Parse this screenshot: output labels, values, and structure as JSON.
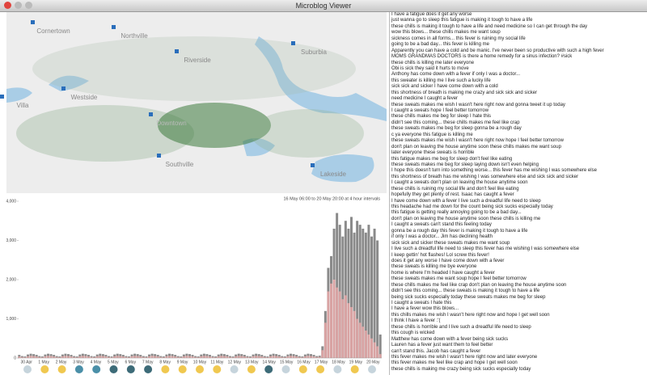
{
  "window": {
    "title": "Microblog Viewer"
  },
  "map": {
    "places": [
      "Cornertown",
      "Northville",
      "Suburbia",
      "Riverside",
      "Villa",
      "Westside",
      "Downtown",
      "Southville",
      "Lakeside"
    ]
  },
  "chart_data": {
    "type": "bar",
    "subtitle": "16 May 06:00 to 20 May 20:00 at 4 hour intervals",
    "categories": [
      "30 Apr",
      null,
      null,
      null,
      null,
      null,
      "1 May",
      null,
      null,
      null,
      null,
      null,
      "2 May",
      null,
      null,
      null,
      null,
      null,
      "3 May",
      null,
      null,
      null,
      null,
      null,
      "4 May",
      null,
      null,
      null,
      null,
      null,
      "5 May",
      null,
      null,
      null,
      null,
      null,
      "6 May",
      null,
      null,
      null,
      null,
      null,
      "7 May",
      null,
      null,
      null,
      null,
      null,
      "8 May",
      null,
      null,
      null,
      null,
      null,
      "9 May",
      null,
      null,
      null,
      null,
      null,
      "10 May",
      null,
      null,
      null,
      null,
      null,
      "11 May",
      null,
      null,
      null,
      null,
      null,
      "12 May",
      null,
      null,
      null,
      null,
      null,
      "13 May",
      null,
      null,
      null,
      null,
      null,
      "14 May",
      null,
      null,
      null,
      null,
      null,
      "15 May",
      null,
      null,
      null,
      null,
      null,
      "16 May",
      null,
      null,
      null,
      null,
      null,
      "17 May",
      null,
      null,
      null,
      null,
      null,
      "18 May",
      null,
      null,
      null,
      null,
      null,
      "19 May",
      null,
      null,
      null,
      null,
      null,
      "20 May",
      null,
      null,
      null,
      null,
      null
    ],
    "series": [
      {
        "color": "#8a8a8a",
        "values": [
          80,
          50,
          40,
          90,
          110,
          100,
          80,
          50,
          40,
          90,
          110,
          100,
          80,
          50,
          40,
          90,
          110,
          100,
          80,
          50,
          40,
          90,
          110,
          100,
          80,
          50,
          40,
          90,
          110,
          100,
          80,
          50,
          40,
          90,
          110,
          100,
          80,
          50,
          40,
          90,
          110,
          100,
          80,
          50,
          40,
          90,
          110,
          100,
          80,
          50,
          40,
          90,
          110,
          100,
          80,
          50,
          40,
          90,
          110,
          100,
          80,
          50,
          40,
          90,
          110,
          100,
          80,
          50,
          40,
          90,
          110,
          100,
          80,
          50,
          40,
          90,
          110,
          100,
          80,
          50,
          40,
          90,
          110,
          100,
          80,
          50,
          40,
          90,
          110,
          100,
          80,
          50,
          40,
          90,
          110,
          100,
          80,
          50,
          40,
          90,
          110,
          100,
          80,
          50,
          60,
          300,
          1200,
          2300,
          2600,
          3300,
          3700,
          3400,
          3100,
          3500,
          3300,
          3600,
          3200,
          3500,
          3400,
          3300,
          3200,
          3400,
          3100,
          3300,
          3000,
          600
        ]
      },
      {
        "color": "#d9a3a3",
        "values": [
          40,
          25,
          20,
          45,
          55,
          50,
          40,
          25,
          20,
          45,
          55,
          50,
          40,
          25,
          20,
          45,
          55,
          50,
          40,
          25,
          20,
          45,
          55,
          50,
          40,
          25,
          20,
          45,
          55,
          50,
          40,
          25,
          20,
          45,
          55,
          50,
          40,
          25,
          20,
          45,
          55,
          50,
          40,
          25,
          20,
          45,
          55,
          50,
          40,
          25,
          20,
          45,
          55,
          50,
          40,
          25,
          20,
          45,
          55,
          50,
          40,
          25,
          20,
          45,
          55,
          50,
          40,
          25,
          20,
          45,
          55,
          50,
          40,
          25,
          20,
          45,
          55,
          50,
          40,
          25,
          20,
          45,
          55,
          50,
          40,
          25,
          20,
          45,
          55,
          50,
          40,
          25,
          20,
          45,
          55,
          50,
          40,
          25,
          20,
          45,
          55,
          50,
          40,
          25,
          30,
          200,
          900,
          1700,
          1900,
          2000,
          1800,
          1700,
          1500,
          1600,
          1400,
          1300,
          1200,
          1000,
          900,
          800,
          700,
          600,
          500,
          400,
          300,
          100
        ]
      }
    ],
    "ylim": [
      0,
      4000
    ],
    "yticks": [
      0,
      {
        "value": 1000,
        "label": "1,000"
      },
      {
        "value": 2000,
        "label": "2,000"
      },
      {
        "value": 3000,
        "label": "3,000"
      },
      {
        "value": 4000,
        "label": "4,000"
      }
    ]
  },
  "messages": [
    "I have a fatigue does it get any worse",
    "just wanna go to sleep this fatigue is making it tough to have a life",
    "these chills is making it tough to have a life and need medicine so I can get through the day",
    "wow this blows... these chills makes me want soup",
    "sickness comes in all forms... this fever is ruining my social life",
    "going to be a bad day... this fever is killing me",
    "Apparently you can have a cold and be manic. I've never been so productive with such a high fever",
    "MOMS GRANDMAS DOCTORS is there a home remedy for a sinus infection? #sick",
    "these chills is killing me later everyone",
    "Obi is sick they said it hurts to move",
    "Anthony has come down with a fever if only I was a doctor...",
    "this sweater is killing me I live such a lucky life",
    "sick sick and sicker I have come down with a cold",
    "this shortness of breath is making me crazy and sick sick and sicker",
    "need medicine I caught a fever",
    "these sweats makes me wish I wasn't here right now and gonna tweet it up today",
    "I caught a sweats hope I feel better tomorrow",
    "these chills makes me beg for sleep I hate this",
    "didn't see this coming... these chills makes me feel like crap",
    "these sweats makes me beg for sleep gonna be a rough day",
    "c ya everyone this fatigue is killing me",
    "these sweats makes me wish I wasn't here right now hope I feel better tomorrow",
    "don't plan on leaving the house anytime soon these chills makes me want soup",
    "later everyone these sweats is horrible",
    "this fatigue makes me beg for sleep don't feel like eating",
    "these sweats makes me beg for sleep laying down isn't even helping",
    "I hope this doesn't turn into something worse... this fever has me wishing I was somewhere else",
    "this shortness of breath has me wishing I was somewhere else and sick sick and sicker",
    "I caught a sweats don't plan on leaving the house anytime soon",
    "these chills is ruining my social life and don't feel like eating",
    "hopefully they get plenty of rest. Isaac has caught a fever",
    "I have come down with a fever I live such a dreadful life need to sleep",
    "this headache had me down for the count being sick sucks especially today",
    "this fatigue is getting really annoying going to be a bad day...",
    "don't plan on leaving the house anytime soon these chills is killing me",
    "I caught a sweats can't stand this feeling today",
    "gonna be a rough day this fever is making it tough to have a life",
    "if only I was a doctor... Jim has declining health",
    "sick sick and sicker these sweats makes me want soup",
    "I live such a dreadful life need to sleep this fever has me wishing I was somewhere else",
    "I keep gettin' hot flashes! Lol screw this fever!",
    "does it get any worse I have come down with a fever",
    "these sweats is killing me bye everyone",
    "home is where I'm headed I have caught a fever",
    "these sweats makes me want soup hope I feel better tomorrow",
    "these chills makes me feel like crap don't plan on leaving the house anytime soon",
    "didn't see this coming... these sweats is making it tough to have a life",
    "being sick sucks especially today these sweats makes me beg for sleep",
    "I caught a sweats I hate this",
    "I have a fever wow this blows...",
    "this chills makes me wish I wasn't here right now and hope I get well soon",
    "I think I have a fever :'(",
    "these chills is horrible and I live such a dreadful life need to sleep",
    "this cough is wicked",
    "Matthew has come down with a fever being sick sucks",
    "Lauren has a fever just want them to feel better",
    "can't stand this. Jacob has caught a fever",
    "this fever makes me wish I wasn't here right now and later everyone",
    "this fever makes me feel like crap and hope I get well soon",
    "these chills is making me crazy being sick sucks especially today"
  ]
}
